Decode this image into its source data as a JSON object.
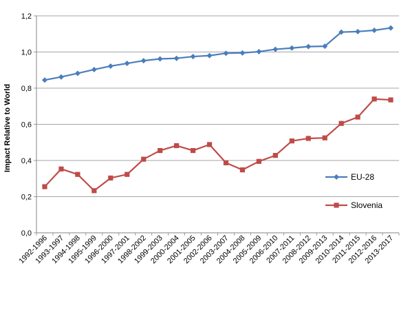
{
  "chart_data": {
    "type": "line",
    "title": "",
    "xlabel": "",
    "ylabel": "Impact Relative to World",
    "ylim": [
      0,
      1.2
    ],
    "yticks": [
      "0,0",
      "0,2",
      "0,4",
      "0,6",
      "0,8",
      "1,0",
      "1,2"
    ],
    "grid": "horizontal",
    "legend_position": "right",
    "categories": [
      "1992-1996",
      "1993-1997",
      "1994-1998",
      "1995-1999",
      "1996-2000",
      "1997-2001",
      "1998-2002",
      "1999-2003",
      "2000-2004",
      "2001-2005",
      "2002-2006",
      "2003-2007",
      "2004-2008",
      "2005-2009",
      "2006-2010",
      "2007-2011",
      "2008-2012",
      "2009-2013",
      "2010-2014",
      "2011-2015",
      "2012-2016",
      "2013-2017"
    ],
    "series": [
      {
        "name": "EU-28",
        "color": "#4a7ebb",
        "marker": "diamond",
        "values": [
          0.845,
          0.862,
          0.882,
          0.903,
          0.922,
          0.937,
          0.952,
          0.962,
          0.965,
          0.975,
          0.98,
          0.993,
          0.995,
          1.002,
          1.015,
          1.022,
          1.03,
          1.032,
          1.11,
          1.113,
          1.12,
          1.133
        ]
      },
      {
        "name": "Slovenia",
        "color": "#be4b48",
        "marker": "square",
        "values": [
          0.255,
          0.353,
          0.323,
          0.233,
          0.303,
          0.323,
          0.407,
          0.455,
          0.482,
          0.455,
          0.488,
          0.387,
          0.348,
          0.395,
          0.428,
          0.508,
          0.522,
          0.525,
          0.605,
          0.64,
          0.74,
          0.735
        ]
      }
    ]
  }
}
